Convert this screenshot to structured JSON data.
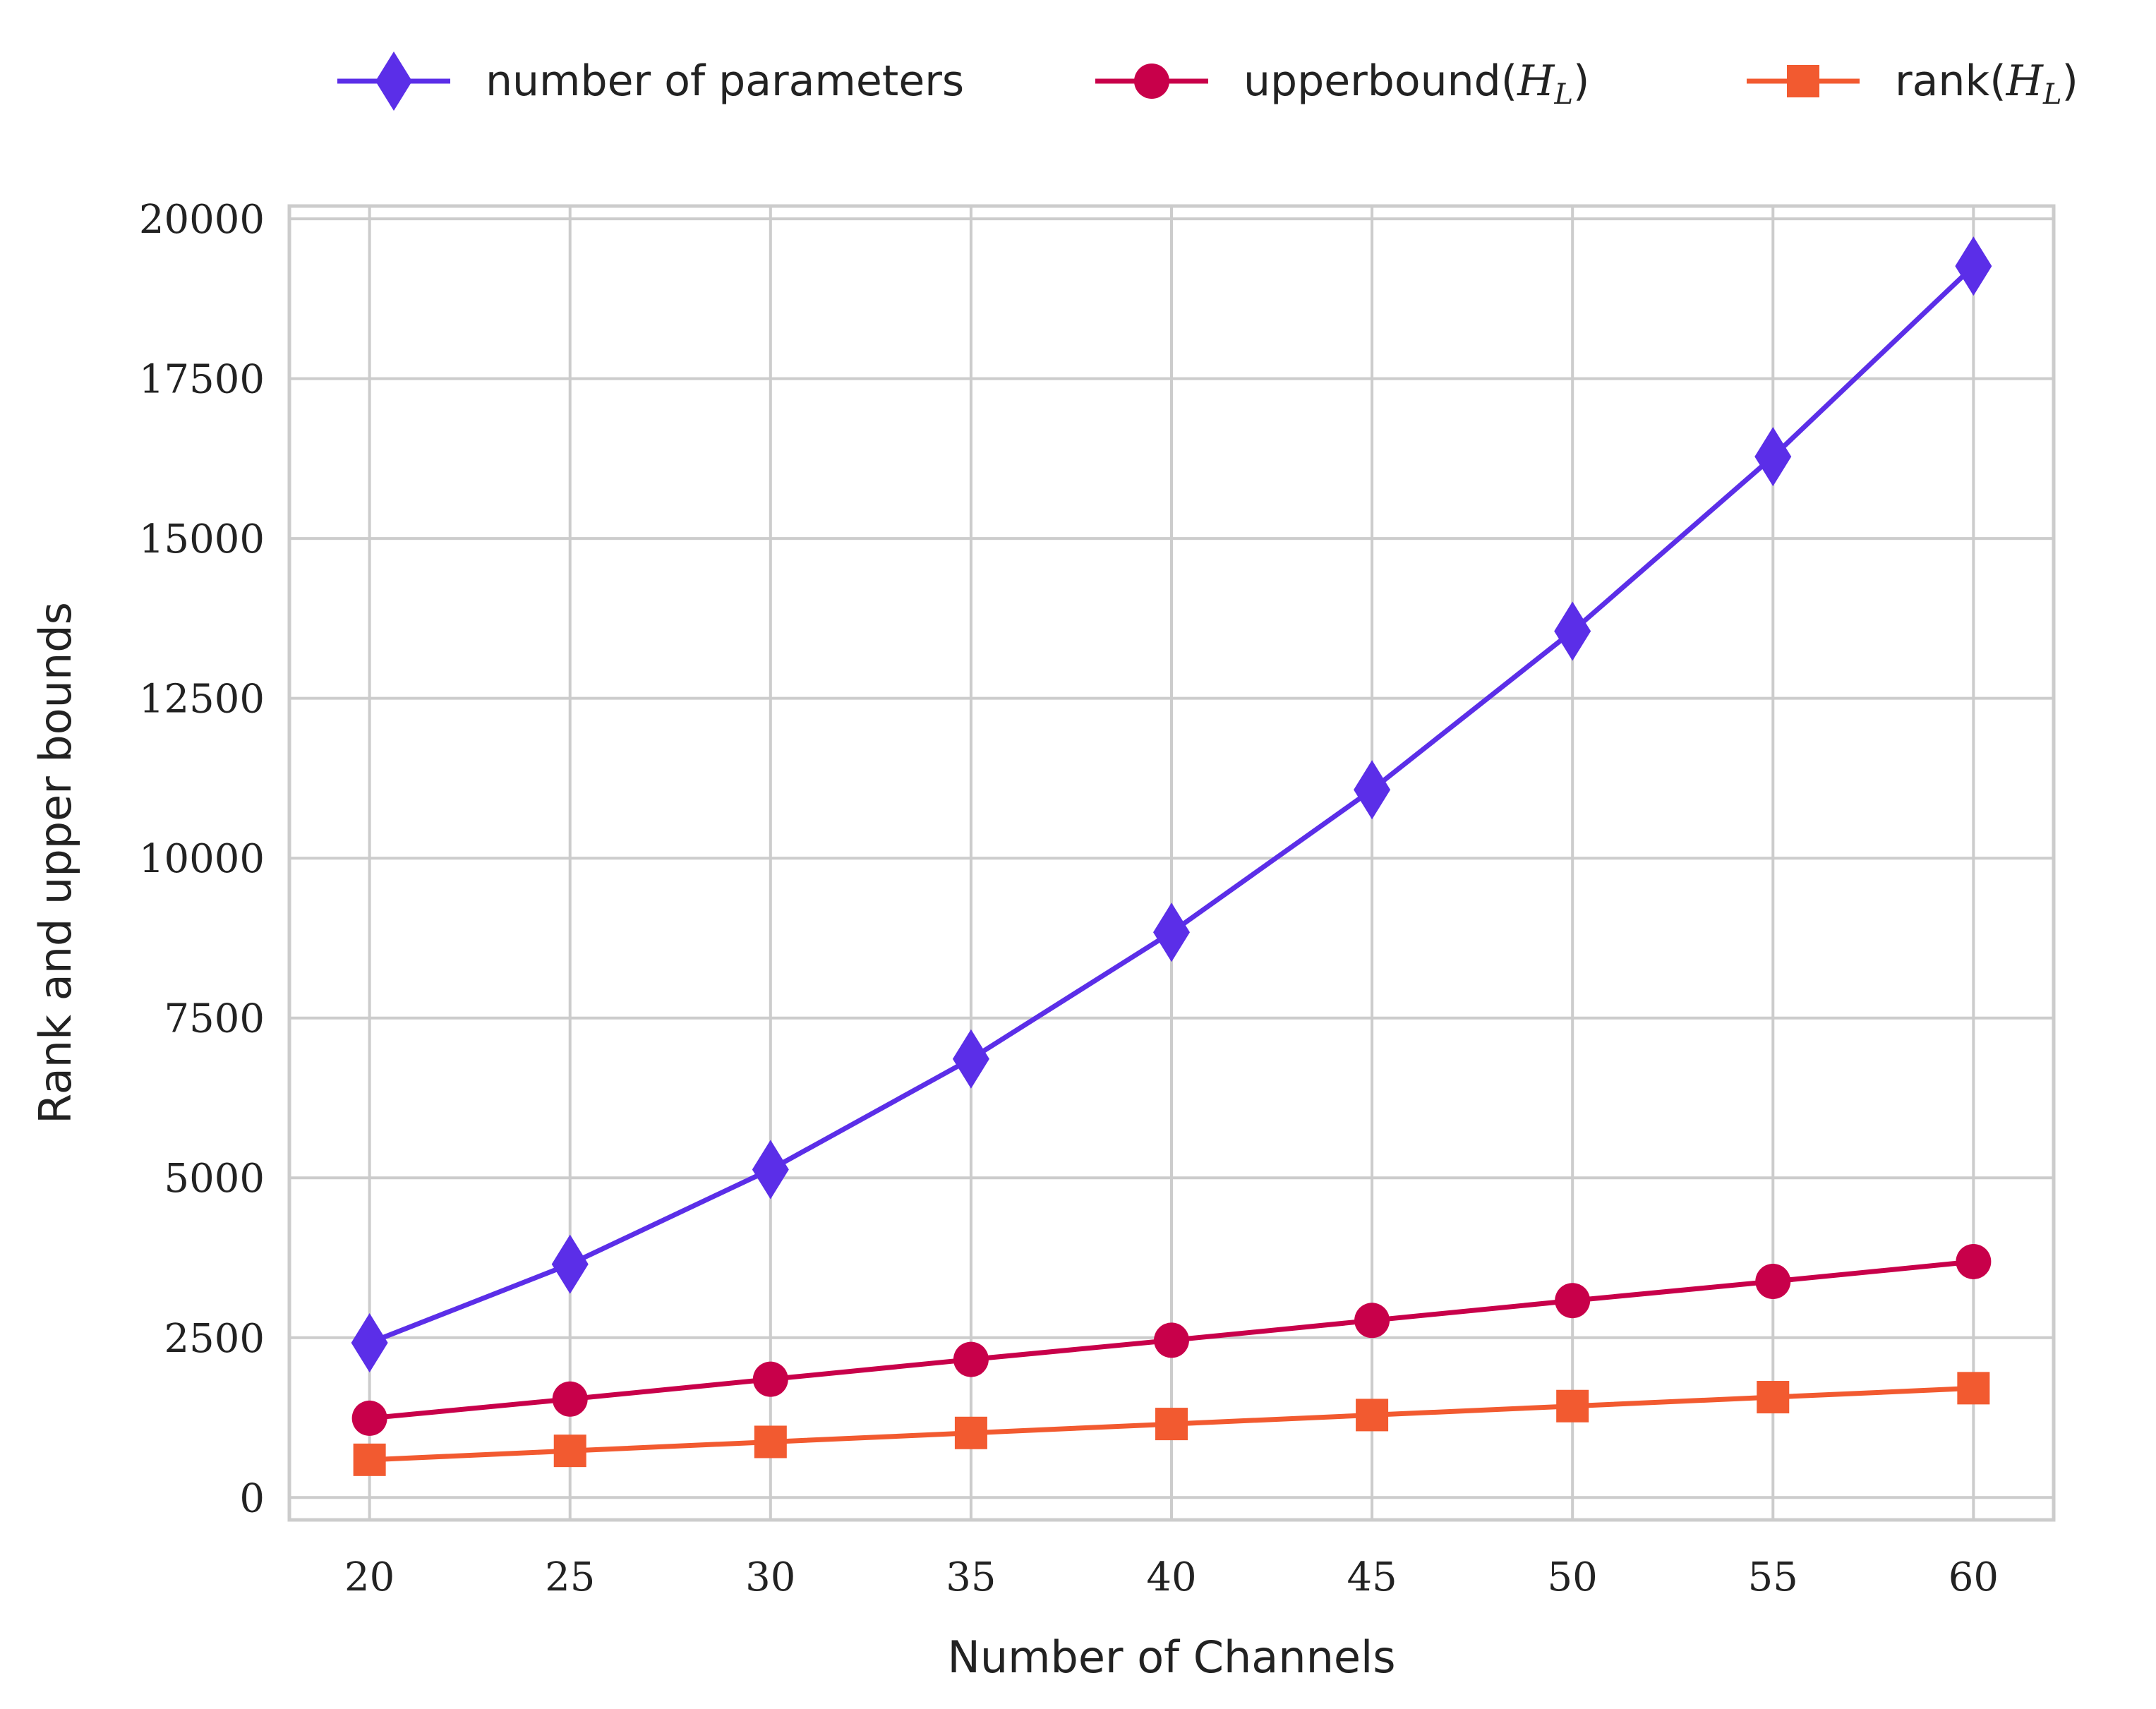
{
  "chart_data": {
    "type": "line",
    "xlabel": "Number of Channels",
    "ylabel": "Rank and upper bounds",
    "x": [
      20,
      25,
      30,
      35,
      40,
      45,
      50,
      55,
      60
    ],
    "xlim": [
      18,
      62
    ],
    "ylim": [
      -350,
      20200
    ],
    "xticks": [
      "20",
      "25",
      "30",
      "35",
      "40",
      "45",
      "50",
      "55",
      "60"
    ],
    "yticks": [
      0,
      2500,
      5000,
      7500,
      10000,
      12500,
      15000,
      17500,
      20000
    ],
    "ytick_labels": [
      "0",
      "2500",
      "5000",
      "7500",
      "10000",
      "12500",
      "15000",
      "17500",
      "20000"
    ],
    "grid": true,
    "legend_position": "top, above plot",
    "series": [
      {
        "name": "number of parameters",
        "name_text": "number of parameters",
        "name_math": "",
        "name_close": "",
        "color": "#5b2ee8",
        "marker": "diamond",
        "values": [
          2420,
          3650,
          5130,
          6860,
          8840,
          11070,
          13550,
          16280,
          19260
        ]
      },
      {
        "name": "upperbound(H_L)",
        "name_text": "upperbound(",
        "name_math": "H_L",
        "name_close": ")",
        "color": "#c8004a",
        "marker": "circle",
        "values": [
          1240,
          1540,
          1850,
          2160,
          2460,
          2770,
          3080,
          3380,
          3690
        ]
      },
      {
        "name": "rank(H_L)",
        "name_text": "rank(",
        "name_math": "H_L",
        "name_close": ")",
        "color": "#f25a30",
        "marker": "square",
        "values": [
          590,
          730,
          870,
          1010,
          1150,
          1290,
          1430,
          1570,
          1710
        ]
      }
    ]
  }
}
